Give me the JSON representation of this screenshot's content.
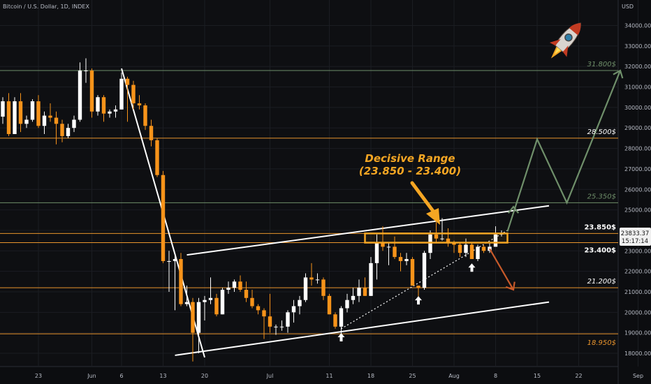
{
  "header": {
    "symbol_title": "Bitcoin / U.S. Dollar, 1D, INDEX",
    "currency": "USD"
  },
  "price_axis": {
    "tick_labels": [
      "34000.00",
      "33000.00",
      "32000.00",
      "31000.00",
      "30000.00",
      "29000.00",
      "28000.00",
      "27000.00",
      "26000.00",
      "25000.00",
      "24000.00",
      "23000.00",
      "22000.00",
      "21000.00",
      "20000.00",
      "19000.00",
      "18000.00"
    ],
    "last_price": "23833.37",
    "countdown": "15:17:14"
  },
  "time_axis": {
    "tick_labels": [
      "23",
      "Jun",
      "6",
      "13",
      "20",
      "Jul",
      "11",
      "18",
      "25",
      "Aug",
      "8",
      "15",
      "22",
      "Sep"
    ]
  },
  "levels": [
    {
      "price": 31800,
      "label": "31.800$",
      "color": "#6f8f6a",
      "style": "italic"
    },
    {
      "price": 28500,
      "label": "28.500$",
      "color": "#e8942c",
      "style": "normal"
    },
    {
      "price": 25350,
      "label": "25.350$",
      "color": "#6f8f6a",
      "style": "italic"
    },
    {
      "price": 23850,
      "label": "23.850$",
      "color": "#e8942c",
      "style": "bold"
    },
    {
      "price": 23400,
      "label": "23.400$",
      "color": "#e8942c",
      "style": "bold"
    },
    {
      "price": 21200,
      "label": "21.200$",
      "color": "#e8942c",
      "style": "normal"
    },
    {
      "price": 18950,
      "label": "18.950$",
      "color": "#e8942c",
      "style": "italic"
    }
  ],
  "annotation": {
    "line1": "Decisive Range",
    "line2": "(23.850 - 23.400)"
  },
  "colors": {
    "up": "#ffffff",
    "down": "#f7931a",
    "background": "#0e0f12",
    "bull_arrow": "#6f8f6a",
    "bear_arrow": "#c85a2a",
    "range_box": "#f5a623"
  },
  "chart_data": {
    "type": "candlestick",
    "title": "Bitcoin / U.S. Dollar, 1D, INDEX",
    "y_unit": "USD",
    "ylim": [
      17600,
      35000
    ],
    "x_start": "2022-05-17",
    "x_end": "2022-09-03",
    "candles": [
      {
        "date": "2022-05-17",
        "o": 29550,
        "h": 30500,
        "l": 29200,
        "c": 30300
      },
      {
        "date": "2022-05-18",
        "o": 30300,
        "h": 30700,
        "l": 28600,
        "c": 28700
      },
      {
        "date": "2022-05-19",
        "o": 28700,
        "h": 30500,
        "l": 28700,
        "c": 30300
      },
      {
        "date": "2022-05-20",
        "o": 30300,
        "h": 30700,
        "l": 28800,
        "c": 29200
      },
      {
        "date": "2022-05-21",
        "o": 29200,
        "h": 29600,
        "l": 29000,
        "c": 29400
      },
      {
        "date": "2022-05-22",
        "o": 29400,
        "h": 30400,
        "l": 29300,
        "c": 30300
      },
      {
        "date": "2022-05-23",
        "o": 30300,
        "h": 30600,
        "l": 29000,
        "c": 29100
      },
      {
        "date": "2022-05-24",
        "o": 29100,
        "h": 29800,
        "l": 28700,
        "c": 29600
      },
      {
        "date": "2022-05-25",
        "o": 29600,
        "h": 30200,
        "l": 29300,
        "c": 29500
      },
      {
        "date": "2022-05-26",
        "o": 29500,
        "h": 29800,
        "l": 28200,
        "c": 29200
      },
      {
        "date": "2022-05-27",
        "o": 29200,
        "h": 29400,
        "l": 28300,
        "c": 28600
      },
      {
        "date": "2022-05-28",
        "o": 28600,
        "h": 29200,
        "l": 28500,
        "c": 29000
      },
      {
        "date": "2022-05-29",
        "o": 29000,
        "h": 29600,
        "l": 28800,
        "c": 29400
      },
      {
        "date": "2022-05-30",
        "o": 29400,
        "h": 32200,
        "l": 29300,
        "c": 31800
      },
      {
        "date": "2022-05-31",
        "o": 31800,
        "h": 32400,
        "l": 31200,
        "c": 31800
      },
      {
        "date": "2022-06-01",
        "o": 31800,
        "h": 31900,
        "l": 29500,
        "c": 29800
      },
      {
        "date": "2022-06-02",
        "o": 29800,
        "h": 30600,
        "l": 29600,
        "c": 30500
      },
      {
        "date": "2022-06-03",
        "o": 30500,
        "h": 30600,
        "l": 29300,
        "c": 29700
      },
      {
        "date": "2022-06-04",
        "o": 29700,
        "h": 29900,
        "l": 29500,
        "c": 29800
      },
      {
        "date": "2022-06-05",
        "o": 29800,
        "h": 30100,
        "l": 29500,
        "c": 29900
      },
      {
        "date": "2022-06-06",
        "o": 29900,
        "h": 31700,
        "l": 29900,
        "c": 31400
      },
      {
        "date": "2022-06-07",
        "o": 31400,
        "h": 31500,
        "l": 29300,
        "c": 31100
      },
      {
        "date": "2022-06-08",
        "o": 31100,
        "h": 31300,
        "l": 29900,
        "c": 30200
      },
      {
        "date": "2022-06-09",
        "o": 30200,
        "h": 30600,
        "l": 29900,
        "c": 30100
      },
      {
        "date": "2022-06-10",
        "o": 30100,
        "h": 30200,
        "l": 28900,
        "c": 29100
      },
      {
        "date": "2022-06-11",
        "o": 29100,
        "h": 29400,
        "l": 28100,
        "c": 28400
      },
      {
        "date": "2022-06-12",
        "o": 28400,
        "h": 28500,
        "l": 26600,
        "c": 26700
      },
      {
        "date": "2022-06-13",
        "o": 26700,
        "h": 26900,
        "l": 22400,
        "c": 22500
      },
      {
        "date": "2022-06-14",
        "o": 22500,
        "h": 23000,
        "l": 21000,
        "c": 22500
      },
      {
        "date": "2022-06-15",
        "o": 22500,
        "h": 22800,
        "l": 20100,
        "c": 22600
      },
      {
        "date": "2022-06-16",
        "o": 22600,
        "h": 22900,
        "l": 20300,
        "c": 20400
      },
      {
        "date": "2022-06-17",
        "o": 20400,
        "h": 21300,
        "l": 20300,
        "c": 20500
      },
      {
        "date": "2022-06-18",
        "o": 20500,
        "h": 20700,
        "l": 17600,
        "c": 19000
      },
      {
        "date": "2022-06-19",
        "o": 19000,
        "h": 20700,
        "l": 18000,
        "c": 20500
      },
      {
        "date": "2022-06-20",
        "o": 20500,
        "h": 20800,
        "l": 19600,
        "c": 20600
      },
      {
        "date": "2022-06-21",
        "o": 20600,
        "h": 21700,
        "l": 20400,
        "c": 20700
      },
      {
        "date": "2022-06-22",
        "o": 20700,
        "h": 20900,
        "l": 19800,
        "c": 19900
      },
      {
        "date": "2022-06-23",
        "o": 19900,
        "h": 21200,
        "l": 19900,
        "c": 21100
      },
      {
        "date": "2022-06-24",
        "o": 21100,
        "h": 21500,
        "l": 20900,
        "c": 21200
      },
      {
        "date": "2022-06-25",
        "o": 21200,
        "h": 21600,
        "l": 21000,
        "c": 21500
      },
      {
        "date": "2022-06-26",
        "o": 21500,
        "h": 21800,
        "l": 21000,
        "c": 21100
      },
      {
        "date": "2022-06-27",
        "o": 21100,
        "h": 21500,
        "l": 20500,
        "c": 20700
      },
      {
        "date": "2022-06-28",
        "o": 20700,
        "h": 21100,
        "l": 20200,
        "c": 20300
      },
      {
        "date": "2022-06-29",
        "o": 20300,
        "h": 20400,
        "l": 19900,
        "c": 20100
      },
      {
        "date": "2022-06-30",
        "o": 20100,
        "h": 20200,
        "l": 18700,
        "c": 19800
      },
      {
        "date": "2022-07-01",
        "o": 19800,
        "h": 20900,
        "l": 19000,
        "c": 19300
      },
      {
        "date": "2022-07-02",
        "o": 19300,
        "h": 19400,
        "l": 18900,
        "c": 19300
      },
      {
        "date": "2022-07-03",
        "o": 19300,
        "h": 19600,
        "l": 19100,
        "c": 19300
      },
      {
        "date": "2022-07-04",
        "o": 19300,
        "h": 20100,
        "l": 19000,
        "c": 20000
      },
      {
        "date": "2022-07-05",
        "o": 20000,
        "h": 20600,
        "l": 19500,
        "c": 20300
      },
      {
        "date": "2022-07-06",
        "o": 20300,
        "h": 20800,
        "l": 19900,
        "c": 20600
      },
      {
        "date": "2022-07-07",
        "o": 20600,
        "h": 21900,
        "l": 20500,
        "c": 21700
      },
      {
        "date": "2022-07-08",
        "o": 21700,
        "h": 22400,
        "l": 21300,
        "c": 21600
      },
      {
        "date": "2022-07-09",
        "o": 21600,
        "h": 21900,
        "l": 21400,
        "c": 21600
      },
      {
        "date": "2022-07-10",
        "o": 21600,
        "h": 21700,
        "l": 20600,
        "c": 20800
      },
      {
        "date": "2022-07-11",
        "o": 20800,
        "h": 20900,
        "l": 19900,
        "c": 19900
      },
      {
        "date": "2022-07-12",
        "o": 19900,
        "h": 20000,
        "l": 19200,
        "c": 19300
      },
      {
        "date": "2022-07-13",
        "o": 19300,
        "h": 20300,
        "l": 18900,
        "c": 20200
      },
      {
        "date": "2022-07-14",
        "o": 20200,
        "h": 20900,
        "l": 20000,
        "c": 20600
      },
      {
        "date": "2022-07-15",
        "o": 20600,
        "h": 21200,
        "l": 20400,
        "c": 20800
      },
      {
        "date": "2022-07-16",
        "o": 20800,
        "h": 21600,
        "l": 20500,
        "c": 21200
      },
      {
        "date": "2022-07-17",
        "o": 21200,
        "h": 21700,
        "l": 20800,
        "c": 20800
      },
      {
        "date": "2022-07-18",
        "o": 20800,
        "h": 22700,
        "l": 20800,
        "c": 22400
      },
      {
        "date": "2022-07-19",
        "o": 22400,
        "h": 23800,
        "l": 21600,
        "c": 23400
      },
      {
        "date": "2022-07-20",
        "o": 23400,
        "h": 24200,
        "l": 23000,
        "c": 23200
      },
      {
        "date": "2022-07-21",
        "o": 23200,
        "h": 23400,
        "l": 22300,
        "c": 23200
      },
      {
        "date": "2022-07-22",
        "o": 23200,
        "h": 23700,
        "l": 22600,
        "c": 22700
      },
      {
        "date": "2022-07-23",
        "o": 22700,
        "h": 22900,
        "l": 22000,
        "c": 22500
      },
      {
        "date": "2022-07-24",
        "o": 22500,
        "h": 22900,
        "l": 22300,
        "c": 22600
      },
      {
        "date": "2022-07-25",
        "o": 22600,
        "h": 22700,
        "l": 21300,
        "c": 21300
      },
      {
        "date": "2022-07-26",
        "o": 21300,
        "h": 21300,
        "l": 20700,
        "c": 21200
      },
      {
        "date": "2022-07-27",
        "o": 21200,
        "h": 23000,
        "l": 21100,
        "c": 22900
      },
      {
        "date": "2022-07-28",
        "o": 22900,
        "h": 24000,
        "l": 22600,
        "c": 23800
      },
      {
        "date": "2022-07-29",
        "o": 23800,
        "h": 24400,
        "l": 23400,
        "c": 23600
      },
      {
        "date": "2022-07-30",
        "o": 23600,
        "h": 24600,
        "l": 23500,
        "c": 23600
      },
      {
        "date": "2022-07-31",
        "o": 23600,
        "h": 24100,
        "l": 23200,
        "c": 23400
      },
      {
        "date": "2022-08-01",
        "o": 23400,
        "h": 23500,
        "l": 22900,
        "c": 23300
      },
      {
        "date": "2022-08-02",
        "o": 23300,
        "h": 23400,
        "l": 22700,
        "c": 22900
      },
      {
        "date": "2022-08-03",
        "o": 22900,
        "h": 23600,
        "l": 22700,
        "c": 23300
      },
      {
        "date": "2022-08-04",
        "o": 23300,
        "h": 23400,
        "l": 22600,
        "c": 22600
      },
      {
        "date": "2022-08-05",
        "o": 22600,
        "h": 23300,
        "l": 22500,
        "c": 23200
      },
      {
        "date": "2022-08-06",
        "o": 23200,
        "h": 23300,
        "l": 22900,
        "c": 23000
      },
      {
        "date": "2022-08-07",
        "o": 23000,
        "h": 23400,
        "l": 22900,
        "c": 23200
      },
      {
        "date": "2022-08-08",
        "o": 23200,
        "h": 24200,
        "l": 23200,
        "c": 23800
      },
      {
        "date": "2022-08-09",
        "o": 23800,
        "h": 24000,
        "l": 23700,
        "c": 23833
      }
    ],
    "trendlines": [
      {
        "name": "channel-top",
        "p1": [
          "2022-06-17",
          22800
        ],
        "p2": [
          "2022-08-17",
          25200
        ],
        "color": "#ffffff",
        "dash": false
      },
      {
        "name": "channel-bottom",
        "p1": [
          "2022-06-15",
          17900
        ],
        "p2": [
          "2022-08-17",
          20500
        ],
        "color": "#ffffff",
        "dash": false
      },
      {
        "name": "support-diagonal",
        "p1": [
          "2022-07-13",
          19200
        ],
        "p2": [
          "2022-08-10",
          24000
        ],
        "color": "#ffffff",
        "dash": true
      },
      {
        "name": "decline-line",
        "p1": [
          "2022-06-06",
          31900
        ],
        "p2": [
          "2022-06-20",
          17800
        ],
        "color": "#ffffff",
        "dash": false
      }
    ],
    "range_box": {
      "x0": "2022-07-17",
      "x1": "2022-08-10",
      "y0": 23400,
      "y1": 23850
    },
    "markers": [
      {
        "date": "2022-07-13",
        "price": 18750
      },
      {
        "date": "2022-07-26",
        "price": 20550
      },
      {
        "date": "2022-08-04",
        "price": 22150
      }
    ],
    "bull_path": [
      [
        "2022-08-10",
        23950
      ],
      [
        "2022-08-15",
        28450
      ],
      [
        "2022-08-20",
        25350
      ],
      [
        "2022-08-29",
        31800
      ]
    ],
    "bear_path": [
      [
        "2022-08-07",
        23100
      ],
      [
        "2022-08-11",
        21100
      ]
    ],
    "grid": true
  }
}
